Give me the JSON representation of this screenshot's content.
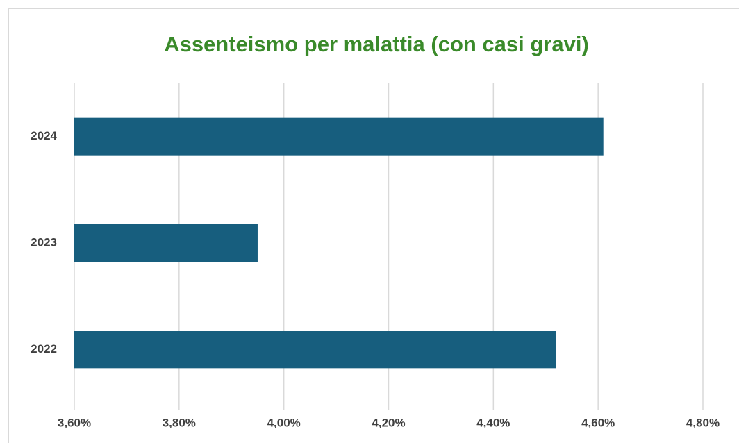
{
  "chart_data": {
    "type": "bar",
    "orientation": "horizontal",
    "title": "Assenteismo per malattia (con casi gravi)",
    "categories": [
      "2022",
      "2023",
      "2024"
    ],
    "values": [
      4.52,
      3.95,
      4.61
    ],
    "color": "#175e7e",
    "xlim": [
      3.6,
      4.8
    ],
    "xticks": [
      {
        "value": 3.6,
        "label": "3,60%"
      },
      {
        "value": 3.8,
        "label": "3,80%"
      },
      {
        "value": 4.0,
        "label": "4,00%"
      },
      {
        "value": 4.2,
        "label": "4,20%"
      },
      {
        "value": 4.4,
        "label": "4,40%"
      },
      {
        "value": 4.6,
        "label": "4,60%"
      },
      {
        "value": 4.8,
        "label": "4,80%"
      }
    ],
    "grid": true
  }
}
